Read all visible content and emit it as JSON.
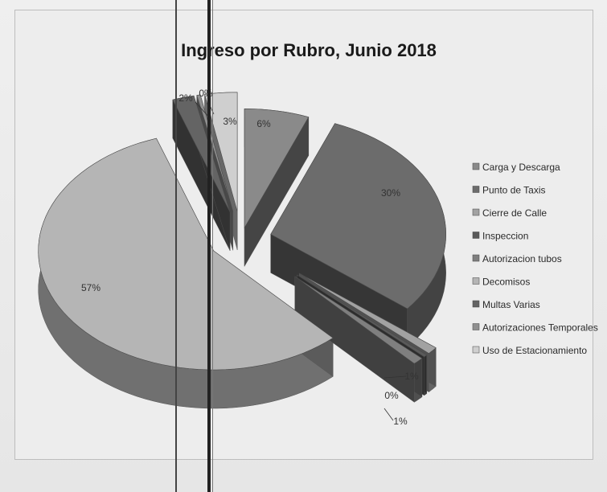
{
  "chart_data": {
    "type": "pie",
    "title": "Ingreso por Rubro, Junio 2018",
    "unit": "%",
    "slices": [
      {
        "name": "Carga y Descarga",
        "value": 6,
        "label": "6%",
        "color": "#8a8a8a"
      },
      {
        "name": "Punto de Taxis",
        "value": 30,
        "label": "30%",
        "color": "#6c6c6c"
      },
      {
        "name": "Cierre de Calle",
        "value": 1,
        "label": "1%",
        "color": "#a2a2a2"
      },
      {
        "name": "Inspeccion",
        "value": 0,
        "label": "0%",
        "color": "#5a5a5a"
      },
      {
        "name": "Autorizacion tubos",
        "value": 1,
        "label": "1%",
        "color": "#7f7f7f"
      },
      {
        "name": "Decomisos",
        "value": 57,
        "label": "57%",
        "color": "#b5b5b5"
      },
      {
        "name": "Multas Varias",
        "value": 2,
        "label": "2%",
        "color": "#646464"
      },
      {
        "name": "Autorizaciones Temporales",
        "value": 0,
        "label": "0%",
        "color": "#909090"
      },
      {
        "name": "Uso de Estacionamiento",
        "value": 3,
        "label": "3%",
        "color": "#cfcfcf"
      }
    ],
    "legend_order": [
      "Carga y Descarga",
      "Punto de Taxis",
      "Cierre de Calle",
      "Inspeccion",
      "Autorizacion tubos",
      "Decomisos",
      "Multas Varias",
      "Autorizaciones Temporales",
      "Uso de Estacionamiento"
    ],
    "legend_colors": [
      "#8a8a8a",
      "#6c6c6c",
      "#a2a2a2",
      "#5a5a5a",
      "#7f7f7f",
      "#b5b5b5",
      "#646464",
      "#909090",
      "#cfcfcf"
    ],
    "legend_position": "right",
    "style": "3d-exploded"
  }
}
